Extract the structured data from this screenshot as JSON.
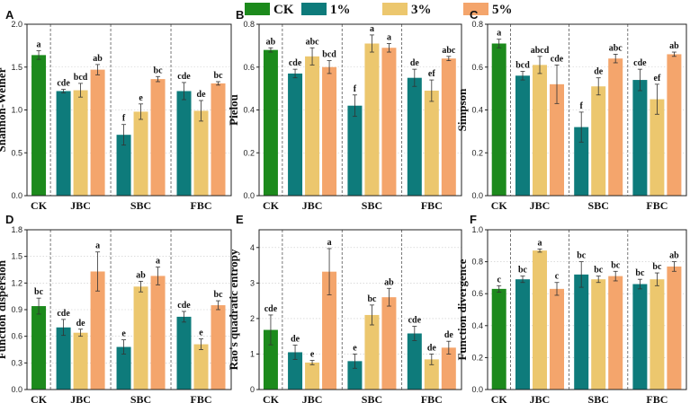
{
  "legend": [
    {
      "name": "CK",
      "color": "#1c8a1c"
    },
    {
      "name": "1%",
      "color": "#0e7b7b"
    },
    {
      "name": "3%",
      "color": "#ecc76e"
    },
    {
      "name": "5%",
      "color": "#f4a56c"
    }
  ],
  "chart_data": [
    {
      "type": "bar",
      "panel": "A",
      "ylabel": "Shannon-Weiner",
      "ylim": [
        0,
        2.0
      ],
      "yticks": [
        "0.0",
        "0.5",
        "1.0",
        "1.5",
        "2.0"
      ],
      "tick_values": [
        0,
        0.5,
        1.0,
        1.5,
        2.0
      ],
      "groups": [
        "CK",
        "JBC",
        "SBC",
        "FBC"
      ],
      "bars": [
        {
          "group": "CK",
          "series": "CK",
          "value": 1.64,
          "err": 0.05,
          "label": "a"
        },
        {
          "group": "JBC",
          "series": "1%",
          "value": 1.22,
          "err": 0.02,
          "label": "cde"
        },
        {
          "group": "JBC",
          "series": "3%",
          "value": 1.23,
          "err": 0.08,
          "label": "bcd"
        },
        {
          "group": "JBC",
          "series": "5%",
          "value": 1.47,
          "err": 0.06,
          "label": "ab"
        },
        {
          "group": "SBC",
          "series": "1%",
          "value": 0.71,
          "err": 0.12,
          "label": "f"
        },
        {
          "group": "SBC",
          "series": "3%",
          "value": 0.98,
          "err": 0.09,
          "label": "e"
        },
        {
          "group": "SBC",
          "series": "5%",
          "value": 1.36,
          "err": 0.03,
          "label": "bc"
        },
        {
          "group": "FBC",
          "series": "1%",
          "value": 1.22,
          "err": 0.1,
          "label": "cde"
        },
        {
          "group": "FBC",
          "series": "3%",
          "value": 0.99,
          "err": 0.12,
          "label": "de"
        },
        {
          "group": "FBC",
          "series": "5%",
          "value": 1.31,
          "err": 0.02,
          "label": "bc"
        }
      ]
    },
    {
      "type": "bar",
      "panel": "B",
      "ylabel": "Pielou",
      "ylim": [
        0,
        0.8
      ],
      "yticks": [
        "0.0",
        "0.2",
        "0.4",
        "0.6",
        "0.8"
      ],
      "tick_values": [
        0,
        0.2,
        0.4,
        0.6,
        0.8
      ],
      "groups": [
        "CK",
        "JBC",
        "SBC",
        "FBC"
      ],
      "bars": [
        {
          "group": "CK",
          "series": "CK",
          "value": 0.68,
          "err": 0.01,
          "label": "ab"
        },
        {
          "group": "JBC",
          "series": "1%",
          "value": 0.57,
          "err": 0.02,
          "label": "cde"
        },
        {
          "group": "JBC",
          "series": "3%",
          "value": 0.65,
          "err": 0.04,
          "label": "abc"
        },
        {
          "group": "JBC",
          "series": "5%",
          "value": 0.6,
          "err": 0.03,
          "label": "bcd"
        },
        {
          "group": "SBC",
          "series": "1%",
          "value": 0.42,
          "err": 0.05,
          "label": "f"
        },
        {
          "group": "SBC",
          "series": "3%",
          "value": 0.71,
          "err": 0.04,
          "label": "a"
        },
        {
          "group": "SBC",
          "series": "5%",
          "value": 0.69,
          "err": 0.02,
          "label": "a"
        },
        {
          "group": "FBC",
          "series": "1%",
          "value": 0.55,
          "err": 0.04,
          "label": "de"
        },
        {
          "group": "FBC",
          "series": "3%",
          "value": 0.49,
          "err": 0.05,
          "label": "ef"
        },
        {
          "group": "FBC",
          "series": "5%",
          "value": 0.64,
          "err": 0.01,
          "label": "abc"
        }
      ]
    },
    {
      "type": "bar",
      "panel": "C",
      "ylabel": "Simpson",
      "ylim": [
        0,
        0.8
      ],
      "yticks": [
        "0.0",
        "0.2",
        "0.4",
        "0.6",
        "0.8"
      ],
      "tick_values": [
        0,
        0.2,
        0.4,
        0.6,
        0.8
      ],
      "groups": [
        "CK",
        "JBC",
        "SBC",
        "FBC"
      ],
      "bars": [
        {
          "group": "CK",
          "series": "CK",
          "value": 0.71,
          "err": 0.02,
          "label": "a"
        },
        {
          "group": "JBC",
          "series": "1%",
          "value": 0.56,
          "err": 0.02,
          "label": "bcd"
        },
        {
          "group": "JBC",
          "series": "3%",
          "value": 0.61,
          "err": 0.04,
          "label": "abcd"
        },
        {
          "group": "JBC",
          "series": "5%",
          "value": 0.52,
          "err": 0.09,
          "label": "cde"
        },
        {
          "group": "SBC",
          "series": "1%",
          "value": 0.32,
          "err": 0.07,
          "label": "f"
        },
        {
          "group": "SBC",
          "series": "3%",
          "value": 0.51,
          "err": 0.04,
          "label": "de"
        },
        {
          "group": "SBC",
          "series": "5%",
          "value": 0.64,
          "err": 0.02,
          "label": "abc"
        },
        {
          "group": "FBC",
          "series": "1%",
          "value": 0.54,
          "err": 0.05,
          "label": "cde"
        },
        {
          "group": "FBC",
          "series": "3%",
          "value": 0.45,
          "err": 0.07,
          "label": "ef"
        },
        {
          "group": "FBC",
          "series": "5%",
          "value": 0.66,
          "err": 0.01,
          "label": "ab"
        }
      ]
    },
    {
      "type": "bar",
      "panel": "D",
      "ylabel": "Function dispersion",
      "ylim": [
        0,
        1.8
      ],
      "yticks": [
        "0.0",
        "0.3",
        "0.6",
        "0.9",
        "1.2",
        "1.5",
        "1.8"
      ],
      "tick_values": [
        0,
        0.3,
        0.6,
        0.9,
        1.2,
        1.5,
        1.8
      ],
      "groups": [
        "CK",
        "JBC",
        "SBC",
        "FBC"
      ],
      "bars": [
        {
          "group": "CK",
          "series": "CK",
          "value": 0.94,
          "err": 0.09,
          "label": "bc"
        },
        {
          "group": "JBC",
          "series": "1%",
          "value": 0.7,
          "err": 0.09,
          "label": "cde"
        },
        {
          "group": "JBC",
          "series": "3%",
          "value": 0.64,
          "err": 0.04,
          "label": "de"
        },
        {
          "group": "JBC",
          "series": "5%",
          "value": 1.33,
          "err": 0.22,
          "label": "a"
        },
        {
          "group": "SBC",
          "series": "1%",
          "value": 0.48,
          "err": 0.08,
          "label": "e"
        },
        {
          "group": "SBC",
          "series": "3%",
          "value": 1.16,
          "err": 0.06,
          "label": "ab"
        },
        {
          "group": "SBC",
          "series": "5%",
          "value": 1.28,
          "err": 0.1,
          "label": "a"
        },
        {
          "group": "FBC",
          "series": "1%",
          "value": 0.82,
          "err": 0.06,
          "label": "cde"
        },
        {
          "group": "FBC",
          "series": "3%",
          "value": 0.51,
          "err": 0.06,
          "label": "e"
        },
        {
          "group": "FBC",
          "series": "5%",
          "value": 0.95,
          "err": 0.05,
          "label": "bc"
        }
      ]
    },
    {
      "type": "bar",
      "panel": "E",
      "ylabel": "Rao's quadratic entropy",
      "ylim": [
        0,
        4.5
      ],
      "yticks": [
        "0",
        "1",
        "2",
        "3",
        "4"
      ],
      "tick_values": [
        0,
        1,
        2,
        3,
        4
      ],
      "groups": [
        "CK",
        "JBC",
        "SBC",
        "FBC"
      ],
      "bars": [
        {
          "group": "CK",
          "series": "CK",
          "value": 1.68,
          "err": 0.42,
          "label": "cde"
        },
        {
          "group": "JBC",
          "series": "1%",
          "value": 1.05,
          "err": 0.2,
          "label": "de"
        },
        {
          "group": "JBC",
          "series": "3%",
          "value": 0.76,
          "err": 0.06,
          "label": "e"
        },
        {
          "group": "JBC",
          "series": "5%",
          "value": 3.32,
          "err": 0.65,
          "label": "a"
        },
        {
          "group": "SBC",
          "series": "1%",
          "value": 0.8,
          "err": 0.2,
          "label": "e"
        },
        {
          "group": "SBC",
          "series": "3%",
          "value": 2.1,
          "err": 0.28,
          "label": "bc"
        },
        {
          "group": "SBC",
          "series": "5%",
          "value": 2.6,
          "err": 0.25,
          "label": "ab"
        },
        {
          "group": "FBC",
          "series": "1%",
          "value": 1.58,
          "err": 0.2,
          "label": "cde"
        },
        {
          "group": "FBC",
          "series": "3%",
          "value": 0.85,
          "err": 0.15,
          "label": "de"
        },
        {
          "group": "FBC",
          "series": "5%",
          "value": 1.18,
          "err": 0.18,
          "label": "de"
        }
      ]
    },
    {
      "type": "bar",
      "panel": "F",
      "ylabel": "Function divergence",
      "ylim": [
        0,
        1.0
      ],
      "yticks": [
        "0.0",
        "0.2",
        "0.4",
        "0.6",
        "0.8",
        "1.0"
      ],
      "tick_values": [
        0,
        0.2,
        0.4,
        0.6,
        0.8,
        1.0
      ],
      "groups": [
        "CK",
        "JBC",
        "SBC",
        "FBC"
      ],
      "bars": [
        {
          "group": "CK",
          "series": "CK",
          "value": 0.63,
          "err": 0.02,
          "label": "c"
        },
        {
          "group": "JBC",
          "series": "1%",
          "value": 0.69,
          "err": 0.02,
          "label": "bc"
        },
        {
          "group": "JBC",
          "series": "3%",
          "value": 0.87,
          "err": 0.01,
          "label": "a"
        },
        {
          "group": "JBC",
          "series": "5%",
          "value": 0.63,
          "err": 0.04,
          "label": "c"
        },
        {
          "group": "SBC",
          "series": "1%",
          "value": 0.72,
          "err": 0.08,
          "label": "bc"
        },
        {
          "group": "SBC",
          "series": "3%",
          "value": 0.69,
          "err": 0.02,
          "label": "bc"
        },
        {
          "group": "SBC",
          "series": "5%",
          "value": 0.71,
          "err": 0.03,
          "label": "bc"
        },
        {
          "group": "FBC",
          "series": "1%",
          "value": 0.66,
          "err": 0.03,
          "label": "bc"
        },
        {
          "group": "FBC",
          "series": "3%",
          "value": 0.69,
          "err": 0.04,
          "label": "bc"
        },
        {
          "group": "FBC",
          "series": "5%",
          "value": 0.77,
          "err": 0.03,
          "label": "ab"
        }
      ]
    }
  ]
}
